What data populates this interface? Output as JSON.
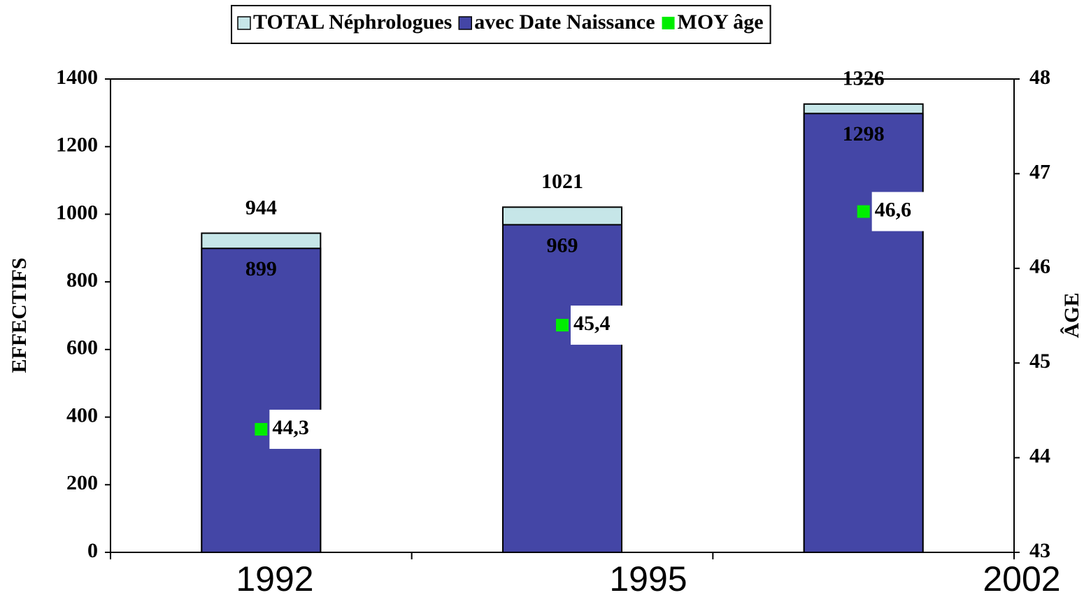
{
  "chart_data": {
    "type": "bar",
    "categories": [
      "1992",
      "1995",
      "2002"
    ],
    "series": [
      {
        "name": "TOTAL Néphrologues",
        "color": "#c6e6e8",
        "values": [
          944,
          1021,
          1326
        ]
      },
      {
        "name": "avec Date Naissance",
        "color": "#4446a6",
        "values": [
          899,
          969,
          1298
        ]
      },
      {
        "name": "MOY âge",
        "color": "#00ee00",
        "type": "scatter",
        "axis": "y2",
        "values": [
          44.3,
          45.4,
          46.6
        ],
        "value_labels": [
          "44,3",
          "45,4",
          "46,6"
        ]
      }
    ],
    "y_label": "EFFECTIFS",
    "y2_label": "ÂGE",
    "ylim": [
      0,
      1400
    ],
    "yticks": [
      0,
      200,
      400,
      600,
      800,
      1000,
      1200,
      1400
    ],
    "y2lim": [
      43,
      48
    ],
    "y2ticks": [
      43,
      44,
      45,
      46,
      47,
      48
    ],
    "legend": "top"
  }
}
